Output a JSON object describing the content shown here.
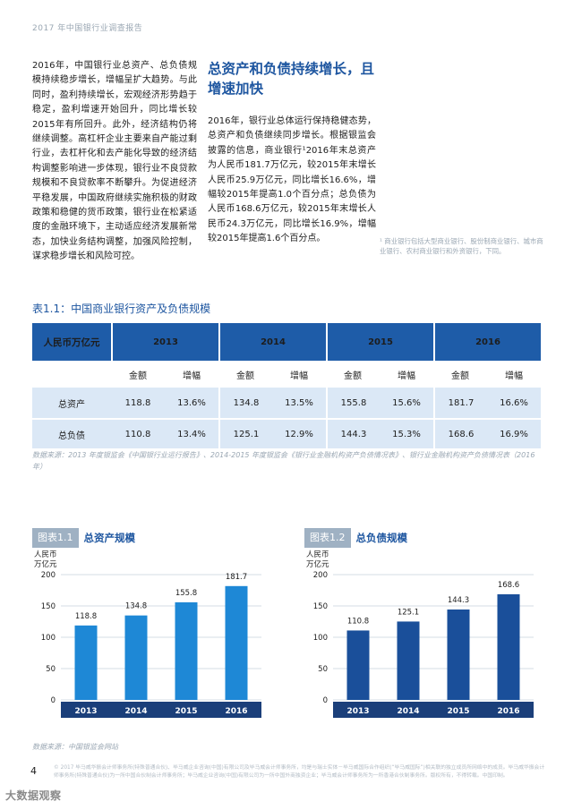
{
  "header": {
    "text": "2017 年中国银行业调查报告"
  },
  "left_column": {
    "text": "2016年，中国银行业总资产、总负债规模持续稳步增长，增幅呈扩大趋势。与此同时，盈利持续增长，宏观经济形势趋于稳定，盈利增速开始回升，同比增长较2015年有所回升。此外，经济结构仍将继续调整。高杠杆企业主要来自产能过剩行业，去杠杆化和去产能化导致的经济结构调整影响进一步体现，银行业不良贷款规模和不良贷款率不断攀升。为促进经济平稳发展，中国政府继续实施积极的财政政策和稳健的货币政策，银行业在松紧适度的金融环境下，主动适应经济发展新常态，加快业务结构调整，加强风险控制，谋求稳步增长和风险可控。"
  },
  "section": {
    "title": "总资产和负债持续增长，且增速加快",
    "body": "2016年，银行业总体运行保持稳健态势，总资产和负债继续同步增长。根据银监会披露的信息，商业银行¹2016年末总资产为人民币181.7万亿元，较2015年末增长人民币25.9万亿元，同比增长16.6%，增幅较2015年提高1.0个百分点；总负债为人民币168.6万亿元，较2015年末增长人民币24.3万亿元，同比增长16.9%，增幅较2015年提高1.6个百分点。",
    "footnote": "¹ 商业银行包括大型商业银行、股份制商业银行、城市商业银行、农村商业银行和外资银行，下同。"
  },
  "table": {
    "title": "表1.1：中国商业银行资产及负债规模",
    "unit_label": "人民币万亿元",
    "years": [
      "2013",
      "2014",
      "2015",
      "2016"
    ],
    "sub_headers": [
      "金额",
      "增幅"
    ],
    "rows": [
      {
        "label": "总资产",
        "cells": [
          "118.8",
          "13.6%",
          "134.8",
          "13.5%",
          "155.8",
          "15.6%",
          "181.7",
          "16.6%"
        ]
      },
      {
        "label": "总负债",
        "cells": [
          "110.8",
          "13.4%",
          "125.1",
          "12.9%",
          "144.3",
          "15.3%",
          "168.6",
          "16.9%"
        ]
      }
    ],
    "source": "数据来源：2013 年度银监会《中国银行业运行报告》、2014-2015 年度银监会《银行业金融机构资产负债情况表》、银行业金融机构资产负债情况表（2016 年）"
  },
  "chart_data": [
    {
      "type": "bar",
      "tag": "图表1.1",
      "title": "总资产规模",
      "ylabel": "人民币万亿元",
      "categories": [
        "2013",
        "2014",
        "2015",
        "2016"
      ],
      "values": [
        118.8,
        134.8,
        155.8,
        181.7
      ],
      "ylim": [
        0,
        200
      ],
      "yticks": [
        0,
        50,
        100,
        150,
        200
      ],
      "bar_color": "#1e88d6",
      "grid": true
    },
    {
      "type": "bar",
      "tag": "图表1.2",
      "title": "总负债规模",
      "ylabel": "人民币万亿元",
      "categories": [
        "2013",
        "2014",
        "2015",
        "2016"
      ],
      "values": [
        110.8,
        125.1,
        144.3,
        168.6
      ],
      "ylim": [
        0,
        200
      ],
      "yticks": [
        0,
        50,
        100,
        150,
        200
      ],
      "bar_color": "#1a4f9a",
      "grid": true
    }
  ],
  "chart_source": "数据来源：中国银监会网站",
  "footer": {
    "page_number": "4",
    "legal": "© 2017 毕马威华振会计师事务所(特殊普通合伙)、毕马威企业咨询(中国)有限公司及毕马威会计师事务所，均是与瑞士实体－毕马威国际合作组织(“毕马威国际”)相关联的独立成员所网络中的成员。毕马威华振会计师事务所(特殊普通合伙)为一所中国合伙制会计师事务所；毕马威企业咨询(中国)有限公司为一所中国外商独资企业；毕马威会计师事务所为一所香港合伙制事务所。版权所有，不得转载。中国印制。",
    "watermark": "大数据观察"
  }
}
